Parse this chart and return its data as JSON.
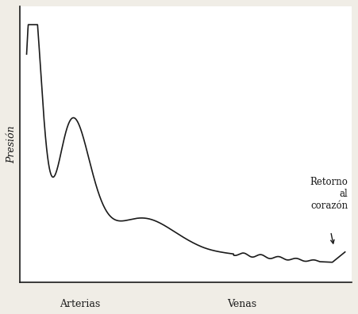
{
  "title": "",
  "ylabel": "Presión",
  "xlabel_left": "Arterias",
  "xlabel_right": "Venas",
  "annotation": "Retorno\nal\ncorazón",
  "line_color": "#1a1a1a",
  "background_color": "#f0ede6",
  "axes_color": "#1a1a1a",
  "xlim": [
    0,
    1
  ],
  "ylim": [
    0,
    1
  ],
  "ylabel_fontsize": 9,
  "xlabel_fontsize": 9,
  "annotation_fontsize": 8.5,
  "line_width": 1.2
}
